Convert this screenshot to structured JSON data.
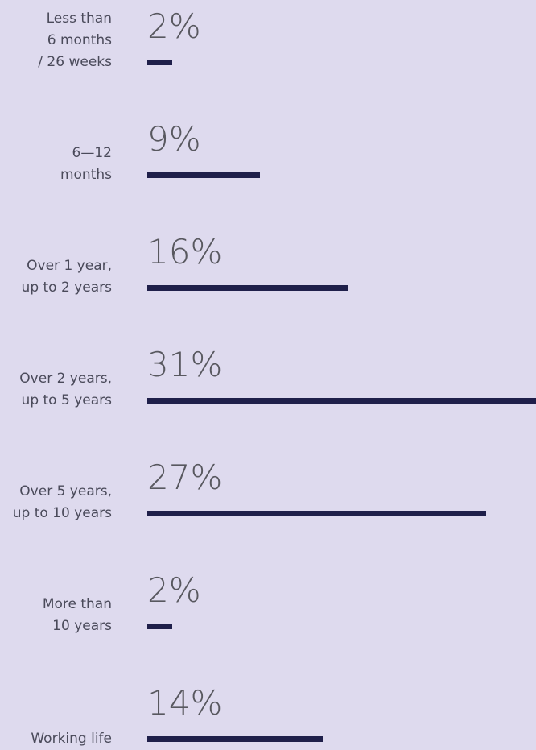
{
  "chart_data": {
    "type": "bar",
    "orientation": "horizontal",
    "categories": [
      "Less than\n6 months\n/ 26 weeks",
      "6—12\nmonths",
      "Over 1 year,\nup to 2 years",
      "Over 2 years,\nup to 5 years",
      "Over 5 years,\nup to 10 years",
      "More than\n10 years",
      "Working life"
    ],
    "values": [
      2,
      9,
      16,
      31,
      27,
      2,
      14
    ],
    "value_labels": [
      "2%",
      "9%",
      "16%",
      "31%",
      "27%",
      "2%",
      "14%"
    ],
    "color": "#1f1f4a"
  }
}
